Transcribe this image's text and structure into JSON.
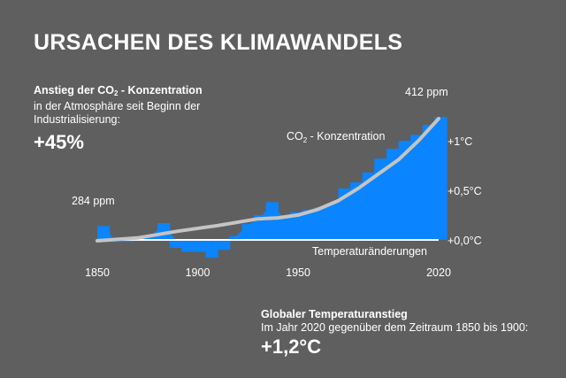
{
  "page": {
    "title": "URSACHEN DES KLIMAWANDELS",
    "co2": {
      "heading_prefix": "Anstieg der CO",
      "heading_sub": "2",
      "heading_suffix": " - Konzentration",
      "line1": "in der Atmosphäre seit Beginn der",
      "line2": "Industrialisierung:",
      "value": "+45%"
    },
    "temperature": {
      "heading": "Globaler Temperaturanstieg",
      "line1": "Im Jahr 2020 gegenüber dem Zeitraum 1850 bis 1900:",
      "value": "+1,2°C"
    }
  },
  "chart_data": {
    "type": "bar",
    "x_ticks": [
      {
        "value": 1850,
        "label": "1850"
      },
      {
        "value": 1900,
        "label": "1900"
      },
      {
        "value": 1950,
        "label": "1950"
      },
      {
        "value": 2020,
        "label": "2020"
      }
    ],
    "xlim": [
      1850,
      2020
    ],
    "y_ticks": [
      {
        "value": 0,
        "label": "+0,0°C"
      },
      {
        "value": 0.5,
        "label": "+0,5°C"
      },
      {
        "value": 1.0,
        "label": "+1°C"
      }
    ],
    "ylim_temperature": [
      -0.2,
      1.25
    ],
    "co2_range_ppm": [
      284,
      412
    ],
    "annotations": {
      "start": "284 ppm",
      "end": "412 ppm",
      "co2_line_prefix": "CO",
      "co2_line_sub": "2",
      "co2_line_suffix": " - Konzentration",
      "temperature_label": "Temperaturänderungen"
    },
    "series": [
      {
        "name": "Temperaturänderungen",
        "years": [
          1850,
          1856,
          1862,
          1868,
          1874,
          1880,
          1886,
          1892,
          1898,
          1904,
          1910,
          1916,
          1922,
          1928,
          1934,
          1940,
          1946,
          1952,
          1958,
          1964,
          1970,
          1976,
          1982,
          1988,
          1994,
          2000,
          2006,
          2012,
          2018
        ],
        "values": [
          0.14,
          -0.02,
          -0.02,
          0.0,
          0.05,
          0.17,
          -0.08,
          -0.12,
          -0.12,
          -0.18,
          -0.1,
          0.04,
          0.16,
          0.25,
          0.38,
          0.24,
          0.28,
          0.3,
          0.33,
          0.37,
          0.52,
          0.58,
          0.68,
          0.82,
          0.92,
          1.0,
          1.06,
          1.16,
          1.24
        ]
      },
      {
        "name": "CO2 - Konzentration",
        "years": [
          1850,
          1870,
          1890,
          1910,
          1930,
          1940,
          1950,
          1960,
          1970,
          1980,
          1990,
          2000,
          2010,
          2020
        ],
        "values": [
          284,
          287,
          294,
          300,
          307,
          308,
          311,
          317,
          326,
          339,
          354,
          369,
          389,
          412
        ]
      }
    ],
    "colors": {
      "temperature": "#0a84ff",
      "co2_line": "#c4c4c4",
      "background": "#5f5f5f",
      "text": "#ffffff"
    },
    "grid": false
  }
}
